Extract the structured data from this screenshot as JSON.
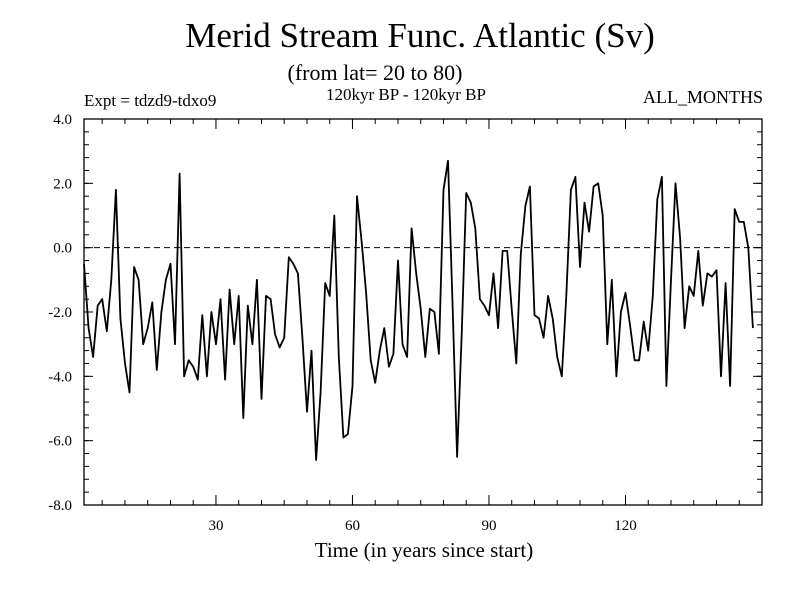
{
  "chart_data": {
    "type": "line",
    "title": "Merid Stream Func. Atlantic (Sv)",
    "subtitle": "(from lat= 20 to 80)",
    "experiment": "Expt = tdzd9-tdxo9",
    "period": "120kyr BP - 120kyr BP",
    "months": "ALL_MONTHS",
    "xlabel": "Time (in years since start)",
    "ylabel": "",
    "xlim": [
      1,
      150
    ],
    "ylim": [
      -8.0,
      4.0
    ],
    "x_ticks": [
      30,
      60,
      90,
      120
    ],
    "x_tick_labels": [
      "30",
      "60",
      "90",
      "120"
    ],
    "y_ticks": [
      -8,
      -6,
      -4,
      -2,
      0,
      2,
      4
    ],
    "y_tick_labels": [
      "-8.0",
      "-6.0",
      "-4.0",
      "-2.0",
      "0.0",
      "2.0",
      "4.0"
    ],
    "reference_line": 0.0,
    "series": [
      {
        "name": "Merid Stream Func. Atlantic",
        "x_start": 1,
        "x_step": 1,
        "values": [
          -0.5,
          -2.5,
          -3.4,
          -1.8,
          -1.6,
          -2.6,
          -1.0,
          1.8,
          -2.2,
          -3.6,
          -4.5,
          -0.6,
          -1.0,
          -3.0,
          -2.5,
          -1.7,
          -3.8,
          -2.0,
          -1.0,
          -0.5,
          -3.0,
          2.3,
          -4.0,
          -3.5,
          -3.7,
          -4.1,
          -2.1,
          -4.0,
          -2.0,
          -3.0,
          -1.6,
          -4.1,
          -1.3,
          -3.0,
          -1.5,
          -5.3,
          -1.8,
          -3.0,
          -1.0,
          -4.7,
          -1.5,
          -1.6,
          -2.7,
          -3.1,
          -2.8,
          -0.3,
          -0.5,
          -0.8,
          -2.8,
          -5.1,
          -3.2,
          -6.6,
          -4.5,
          -1.1,
          -1.5,
          1.0,
          -3.4,
          -5.9,
          -5.8,
          -4.3,
          1.6,
          0.2,
          -1.4,
          -3.5,
          -4.2,
          -3.2,
          -2.5,
          -3.7,
          -3.3,
          -0.4,
          -3.0,
          -3.4,
          0.6,
          -0.8,
          -1.9,
          -3.4,
          -1.9,
          -2.0,
          -3.3,
          1.8,
          2.7,
          -1.8,
          -6.5,
          -2.7,
          1.7,
          1.4,
          0.6,
          -1.6,
          -1.8,
          -2.1,
          -0.8,
          -2.5,
          -0.1,
          -0.1,
          -1.9,
          -3.6,
          -0.2,
          1.3,
          1.9,
          -2.1,
          -2.2,
          -2.8,
          -1.5,
          -2.2,
          -3.4,
          -4.0,
          -1.5,
          1.8,
          2.2,
          -0.6,
          1.4,
          0.5,
          1.9,
          2.0,
          1.0,
          -3.0,
          -1.0,
          -4.0,
          -2.0,
          -1.4,
          -2.4,
          -3.5,
          -3.5,
          -2.3,
          -3.2,
          -1.5,
          1.5,
          2.2,
          -4.3,
          -1.0,
          2.0,
          0.3,
          -2.5,
          -1.2,
          -1.5,
          -0.1,
          -1.8,
          -0.8,
          -0.9,
          -0.7,
          -4.0,
          -1.1,
          -4.3,
          1.2,
          0.8,
          0.8,
          0.0,
          -2.5
        ]
      }
    ]
  }
}
